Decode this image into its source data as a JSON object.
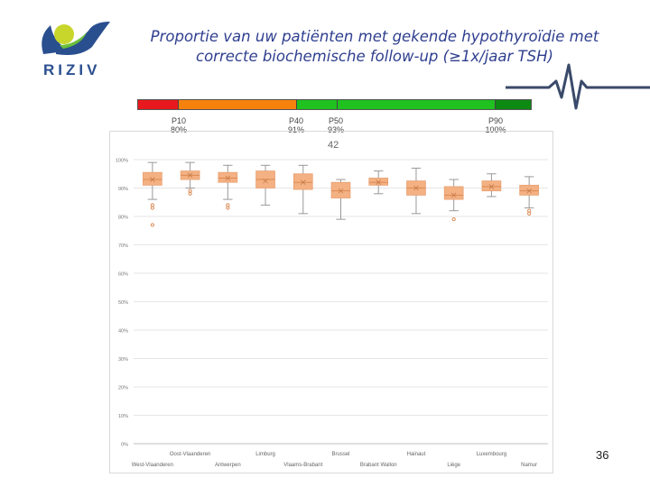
{
  "header": {
    "logo_text": "RIZIV",
    "title_line1": "Proportie van uw patiënten met gekende hypothyroïdie met",
    "title_line2": "correcte biochemische follow-up (≥1x/jaar TSH)"
  },
  "scale": {
    "colors": {
      "red": "#e8191e",
      "orange": "#f6820d",
      "green": "#1fc21f",
      "darkgreen": "#0d8a12"
    },
    "percentiles": [
      {
        "label": "P10",
        "value": "80%"
      },
      {
        "label": "P40",
        "value": "91%"
      },
      {
        "label": "P50",
        "value": "93%"
      },
      {
        "label": "P90",
        "value": "100%"
      }
    ],
    "count": "42"
  },
  "chart_data": {
    "type": "boxplot",
    "title": "",
    "ylim": [
      0,
      100
    ],
    "yticks": [
      "0%",
      "10%",
      "20%",
      "30%",
      "40%",
      "50%",
      "60%",
      "70%",
      "80%",
      "90%",
      "100%"
    ],
    "color": "#f4b183",
    "categories": [
      "West-Vlaanderen",
      "Oost-Vlaanderen",
      "Antwerpen",
      "Limburg",
      "Vlaams-Brabant",
      "Brussel",
      "Brabant Wallon",
      "Hainaut",
      "Liège",
      "Luxembourg",
      "Namur"
    ],
    "boxes": [
      {
        "min": 86,
        "q1": 91,
        "median": 93,
        "q3": 95.5,
        "max": 99,
        "mean": 93,
        "outliers": [
          84,
          83,
          77
        ]
      },
      {
        "min": 90,
        "q1": 93,
        "median": 94.5,
        "q3": 96,
        "max": 99,
        "mean": 94.5,
        "outliers": [
          89,
          88
        ]
      },
      {
        "min": 86,
        "q1": 92,
        "median": 93.5,
        "q3": 95.5,
        "max": 98,
        "mean": 93.5,
        "outliers": [
          84,
          83
        ]
      },
      {
        "min": 84,
        "q1": 90,
        "median": 93,
        "q3": 96,
        "max": 98,
        "mean": 92.5,
        "outliers": []
      },
      {
        "min": 81,
        "q1": 89.5,
        "median": 92,
        "q3": 95,
        "max": 98,
        "mean": 92,
        "outliers": []
      },
      {
        "min": 79,
        "q1": 86.5,
        "median": 89,
        "q3": 92,
        "max": 93,
        "mean": 89,
        "outliers": []
      },
      {
        "min": 88,
        "q1": 91,
        "median": 92,
        "q3": 93.5,
        "max": 96,
        "mean": 92,
        "outliers": []
      },
      {
        "min": 81,
        "q1": 87.5,
        "median": 90,
        "q3": 92.5,
        "max": 97,
        "mean": 90,
        "outliers": []
      },
      {
        "min": 82,
        "q1": 86,
        "median": 87.5,
        "q3": 90.5,
        "max": 93,
        "mean": 87.5,
        "outliers": [
          79
        ]
      },
      {
        "min": 87,
        "q1": 89,
        "median": 90.5,
        "q3": 92.5,
        "max": 95,
        "mean": 90.5,
        "outliers": []
      },
      {
        "min": 83,
        "q1": 87.5,
        "median": 89,
        "q3": 91,
        "max": 94,
        "mean": 89,
        "outliers": [
          82,
          81
        ]
      }
    ]
  },
  "footer": {
    "page_number": "36"
  }
}
